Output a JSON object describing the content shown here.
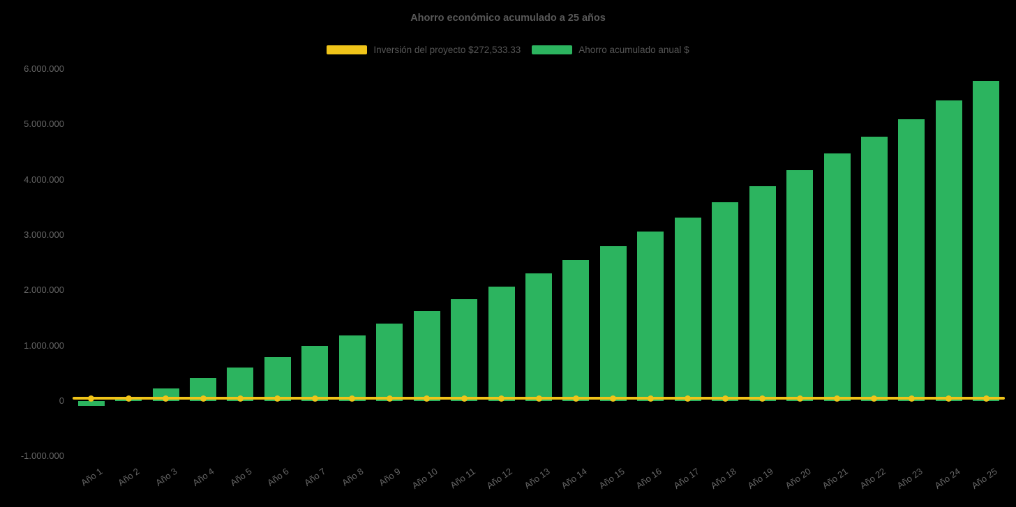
{
  "chart_data": {
    "type": "bar",
    "title": "Ahorro económico acumulado a 25 años",
    "background": "#000000",
    "grid": false,
    "legend_position": "top-center",
    "xlabel": "",
    "ylabel": "",
    "ylim": [
      -1000000,
      6000000
    ],
    "categories": [
      "Año 1",
      "Año 2",
      "Año 3",
      "Año 4",
      "Año 5",
      "Año 6",
      "Año 7",
      "Año 8",
      "Año 9",
      "Año 10",
      "Año 11",
      "Año 12",
      "Año 13",
      "Año 14",
      "Año 15",
      "Año 16",
      "Año 17",
      "Año 18",
      "Año 19",
      "Año 20",
      "Año 21",
      "Año 22",
      "Año 23",
      "Año 24",
      "Año 25"
    ],
    "series": [
      {
        "name": "Ahorro acumulado anual $",
        "type": "bar",
        "color": "#2CB45F",
        "values": [
          -90000,
          80000,
          230000,
          410000,
          600000,
          790000,
          990000,
          1190000,
          1400000,
          1620000,
          1840000,
          2070000,
          2310000,
          2550000,
          2800000,
          3060000,
          3320000,
          3590000,
          3880000,
          4170000,
          4470000,
          4780000,
          5090000,
          5430000,
          5780000
        ]
      },
      {
        "name": "Inversión del proyecto $272,533.33",
        "type": "line",
        "color": "#F0C419",
        "constant_value": 272533.33
      }
    ],
    "legend": [
      {
        "label": "Inversión del proyecto $272,533.33",
        "color": "#F0C419"
      },
      {
        "label": "Ahorro acumulado anual $",
        "color": "#2CB45F"
      }
    ],
    "y_ticks": [
      {
        "label": "6.000.000",
        "value": 6000000
      },
      {
        "label": "5.000.000",
        "value": 5000000
      },
      {
        "label": "4.000.000",
        "value": 4000000
      },
      {
        "label": "3.000.000",
        "value": 3000000
      },
      {
        "label": "2.000.000",
        "value": 2000000
      },
      {
        "label": "1.000.000",
        "value": 1000000
      },
      {
        "label": "0",
        "value": 0
      },
      {
        "label": "-1.000.000",
        "value": -1000000
      }
    ]
  }
}
